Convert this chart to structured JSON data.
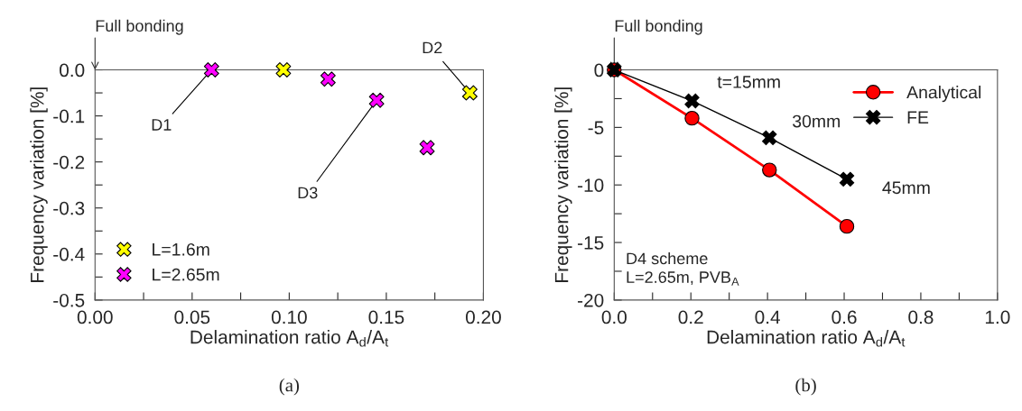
{
  "chart_data": [
    {
      "type": "scatter",
      "title": "(a)",
      "xlabel": "Delamination ratio A$_{d}$/A$_{t}$",
      "ylabel": "Frequency variation [%]",
      "series": [
        {
          "name": "L=1.6m",
          "color": "#ffff00",
          "x": [
            0.097,
            0.193
          ],
          "values": [
            0.0,
            -0.05
          ]
        },
        {
          "name": "L=2.65m",
          "color": "#ff00ff",
          "x": [
            0.06,
            0.12,
            0.145,
            0.171
          ],
          "values": [
            0.0,
            -0.02,
            -0.066,
            -0.169
          ]
        }
      ],
      "xlim": [
        0,
        0.2
      ],
      "ylim": [
        -0.5,
        0
      ],
      "xticks": [
        {
          "value": 0,
          "label": "0.00"
        },
        {
          "value": 0.025,
          "label": null
        },
        {
          "value": 0.05,
          "label": "0.05"
        },
        {
          "value": 0.075,
          "label": null
        },
        {
          "value": 0.1,
          "label": "0.10"
        },
        {
          "value": 0.125,
          "label": null
        },
        {
          "value": 0.15,
          "label": "0.15"
        },
        {
          "value": 0.175,
          "label": null
        },
        {
          "value": 0.2,
          "label": "0.20"
        }
      ],
      "yticks": [
        {
          "value": -0.5,
          "label": "-0.5"
        },
        {
          "value": -0.45,
          "label": null
        },
        {
          "value": -0.4,
          "label": "-0.4"
        },
        {
          "value": -0.35,
          "label": null
        },
        {
          "value": -0.3,
          "label": "-0.3"
        },
        {
          "value": -0.25,
          "label": null
        },
        {
          "value": -0.2,
          "label": "-0.2"
        },
        {
          "value": -0.15,
          "label": null
        },
        {
          "value": -0.1,
          "label": "-0.1"
        },
        {
          "value": -0.05,
          "label": null
        },
        {
          "value": 0,
          "label": "0.0"
        }
      ],
      "annotations": [
        "Full bonding",
        {
          "text": "D1",
          "x": 0.06,
          "y": 0.0
        },
        {
          "text": "D2",
          "x": 0.193,
          "y": -0.05
        },
        {
          "text": "D3",
          "x": 0.145,
          "y": -0.066
        }
      ],
      "marker": "cross",
      "legend": "bottom left",
      "grid": false
    },
    {
      "type": "line",
      "title": "(b)",
      "xlabel": "Delamination ratio A$_{d}$/A$_{t}$",
      "ylabel": "Frequency variation [%]",
      "series": [
        {
          "name": "Analytical",
          "color": "#ff0000",
          "marker": "circle",
          "x": [
            0,
            0.203,
            0.405,
            0.607
          ],
          "values": [
            0,
            -4.2,
            -8.7,
            -13.6
          ]
        },
        {
          "name": "FE",
          "color": "#000000",
          "marker": "cross",
          "x": [
            0,
            0.203,
            0.405,
            0.607
          ],
          "values": [
            0,
            -2.7,
            -5.9,
            -9.5
          ]
        }
      ],
      "xlim": [
        0,
        1
      ],
      "ylim": [
        -20,
        0
      ],
      "xticks": [
        {
          "value": 0,
          "label": "0.0"
        },
        {
          "value": 0.1,
          "label": null
        },
        {
          "value": 0.2,
          "label": "0.2"
        },
        {
          "value": 0.3,
          "label": null
        },
        {
          "value": 0.4,
          "label": "0.4"
        },
        {
          "value": 0.5,
          "label": null
        },
        {
          "value": 0.6,
          "label": "0.6"
        },
        {
          "value": 0.7,
          "label": null
        },
        {
          "value": 0.8,
          "label": "0.8"
        },
        {
          "value": 0.9,
          "label": null
        },
        {
          "value": 1.0,
          "label": "1.0"
        }
      ],
      "yticks": [
        -20,
        {
          "value": -17.5,
          "label": null
        },
        -15,
        {
          "value": -12.5,
          "label": null
        },
        -10,
        {
          "value": -7.5,
          "label": null
        },
        -5,
        {
          "value": -2.5,
          "label": null
        },
        0
      ],
      "annotations": [
        "Full bonding",
        {
          "text": "t=15mm",
          "x": 0.203,
          "y": -2.7
        },
        {
          "text": "30mm",
          "x": 0.405,
          "y": -5.9
        },
        {
          "text": "45mm",
          "x": 0.607,
          "y": -9.5
        },
        "D4 scheme\nL=2.65m, PVB$_{A}$"
      ],
      "legend": "top right",
      "grid": false
    }
  ]
}
